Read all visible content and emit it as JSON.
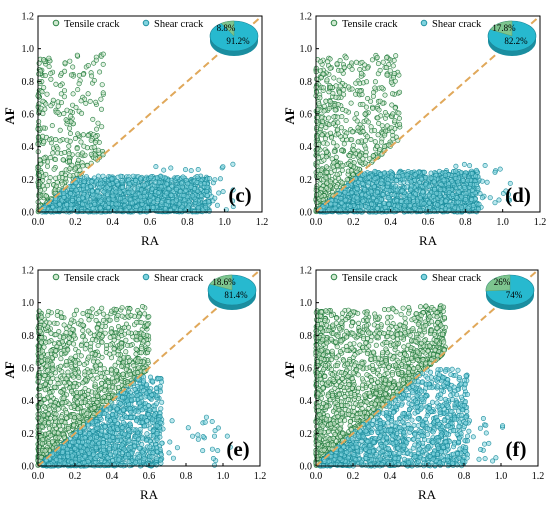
{
  "figure": {
    "colors": {
      "tensile": "#1f7a3a",
      "tensile_fill": "#cfe8cf",
      "shear": "#1a8c9c",
      "shear_fill": "#7fd3df",
      "diagonal": "#e0a85a",
      "pie_tensile": "#7dc58f",
      "pie_shear": "#27b9cf"
    }
  },
  "chart_data": [
    {
      "type": "scatter",
      "label": "(c)",
      "xlabel": "RA",
      "ylabel": "AF",
      "xlim": [
        0,
        1.2
      ],
      "ylim": [
        0,
        1.2
      ],
      "xticks": [
        "0.0",
        "0.2",
        "0.4",
        "0.6",
        "0.8",
        "1.0",
        "1.2"
      ],
      "yticks": [
        "0.0",
        "0.2",
        "0.4",
        "0.6",
        "0.8",
        "1.0",
        "1.2"
      ],
      "legend": {
        "position": "top-left",
        "entries": [
          "Tensile crack",
          "Shear crack"
        ]
      },
      "pie": {
        "tensile_pct": 8.8,
        "shear_pct": 91.2,
        "labels": [
          "8.8%",
          "91.2%"
        ]
      },
      "series": [
        {
          "name": "Tensile crack",
          "region": "AF > RA",
          "approx_points": 350
        },
        {
          "name": "Shear crack",
          "region": "AF < RA",
          "approx_points": 1500
        }
      ],
      "reference_line": {
        "type": "y = x"
      }
    },
    {
      "type": "scatter",
      "label": "(d)",
      "xlabel": "RA",
      "ylabel": "AF",
      "xlim": [
        0,
        1.2
      ],
      "ylim": [
        0,
        1.2
      ],
      "xticks": [
        "0.0",
        "0.2",
        "0.4",
        "0.6",
        "0.8",
        "1.0",
        "1.2"
      ],
      "yticks": [
        "0.0",
        "0.2",
        "0.4",
        "0.6",
        "0.8",
        "1.0",
        "1.2"
      ],
      "legend": {
        "position": "top-left",
        "entries": [
          "Tensile crack",
          "Shear crack"
        ]
      },
      "pie": {
        "tensile_pct": 17.8,
        "shear_pct": 82.2,
        "labels": [
          "17.8%",
          "82.2%"
        ]
      },
      "series": [
        {
          "name": "Tensile crack",
          "region": "AF > RA",
          "approx_points": 600
        },
        {
          "name": "Shear crack",
          "region": "AF < RA",
          "approx_points": 1500
        }
      ],
      "reference_line": {
        "type": "y = x"
      }
    },
    {
      "type": "scatter",
      "label": "(e)",
      "xlabel": "RA",
      "ylabel": "AF",
      "xlim": [
        0,
        1.2
      ],
      "ylim": [
        0,
        1.2
      ],
      "xticks": [
        "0.0",
        "0.2",
        "0.4",
        "0.6",
        "0.8",
        "1.0",
        "1.2"
      ],
      "yticks": [
        "0.0",
        "0.2",
        "0.4",
        "0.6",
        "0.8",
        "1.0",
        "1.2"
      ],
      "legend": {
        "position": "top-left",
        "entries": [
          "Tensile crack",
          "Shear crack"
        ]
      },
      "pie": {
        "tensile_pct": 18.6,
        "shear_pct": 81.4,
        "labels": [
          "18.6%",
          "81.4%"
        ]
      },
      "series": [
        {
          "name": "Tensile crack",
          "region": "AF > RA",
          "approx_points": 1100
        },
        {
          "name": "Shear crack",
          "region": "AF < RA",
          "approx_points": 1300
        }
      ],
      "reference_line": {
        "type": "y = x"
      }
    },
    {
      "type": "scatter",
      "label": "(f)",
      "xlabel": "RA",
      "ylabel": "AF",
      "xlim": [
        0,
        1.2
      ],
      "ylim": [
        0,
        1.2
      ],
      "xticks": [
        "0.0",
        "0.2",
        "0.4",
        "0.6",
        "0.8",
        "1.0",
        "1.2"
      ],
      "yticks": [
        "0.0",
        "0.2",
        "0.4",
        "0.6",
        "0.8",
        "1.0",
        "1.2"
      ],
      "legend": {
        "position": "top-left",
        "entries": [
          "Tensile crack",
          "Shear crack"
        ]
      },
      "pie": {
        "tensile_pct": 26,
        "shear_pct": 74,
        "labels": [
          "26%",
          "74%"
        ]
      },
      "series": [
        {
          "name": "Tensile crack",
          "region": "AF > RA",
          "approx_points": 1400
        },
        {
          "name": "Shear crack",
          "region": "AF < RA",
          "approx_points": 1200
        }
      ],
      "reference_line": {
        "type": "y = x"
      }
    }
  ]
}
